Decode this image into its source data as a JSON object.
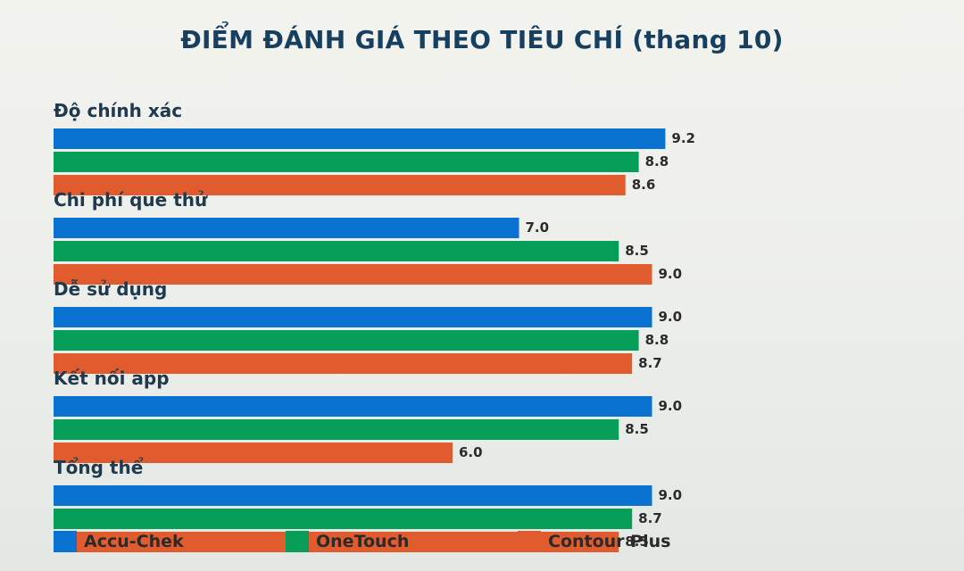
{
  "title": "ĐIỂM ĐÁNH GIÁ THEO TIÊU CHÍ (thang 10)",
  "colors": {
    "Accu-Chek": "#0a72d0",
    "OneTouch": "#079e5a",
    "Contour Plus": "#e05c2e"
  },
  "chart_data": {
    "type": "bar",
    "orientation": "horizontal",
    "title": "ĐIỂM ĐÁNH GIÁ THEO TIÊU CHÍ (thang 10)",
    "categories": [
      "Độ chính xác",
      "Chi phí que thử",
      "Dễ sử dụng",
      "Kết nối app",
      "Tổng thể"
    ],
    "series": [
      {
        "name": "Accu-Chek",
        "values": [
          9.2,
          7.0,
          9.0,
          9.0,
          9.0
        ]
      },
      {
        "name": "OneTouch",
        "values": [
          8.8,
          8.5,
          8.8,
          8.5,
          8.7
        ]
      },
      {
        "name": "Contour Plus",
        "values": [
          8.6,
          9.0,
          8.7,
          6.0,
          8.5
        ]
      }
    ],
    "xlim": [
      0,
      10
    ],
    "grid": false,
    "legend": "bottom"
  }
}
